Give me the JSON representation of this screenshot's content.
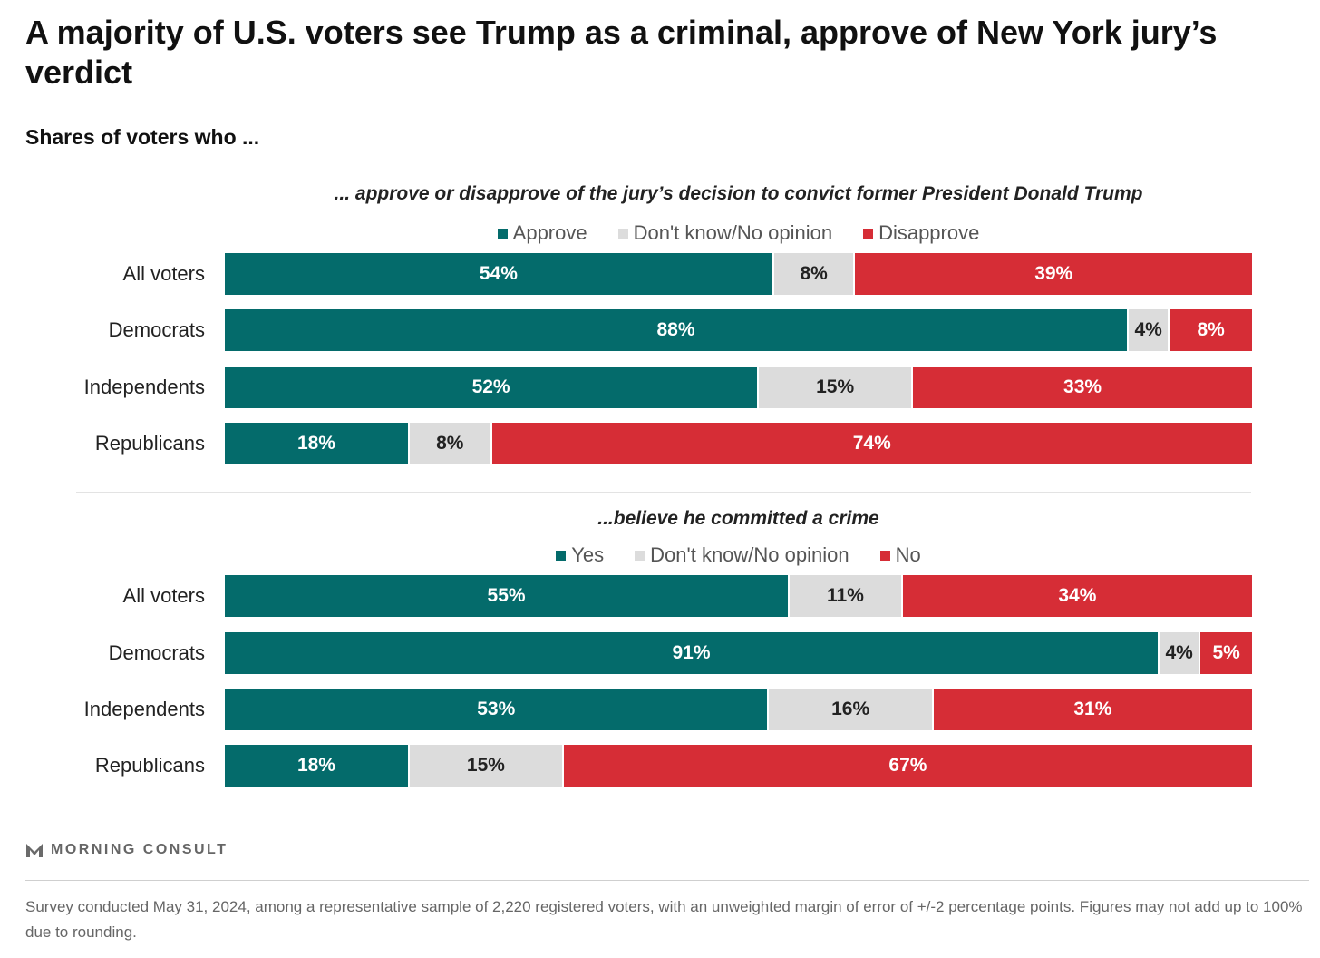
{
  "title": "A majority of U.S. voters see Trump as a criminal, approve of New York jury’s verdict",
  "subtitle": "Shares of voters who ...",
  "brand": "MORNING CONSULT",
  "footnote": "Survey conducted May 31, 2024, among a representative sample of 2,220 registered voters, with an unweighted margin of error of +/-2 percentage points. Figures may not add up to 100% due to rounding.",
  "colors": {
    "positive": "#046b6b",
    "neutral": "#dcdcdc",
    "negative": "#d62d36"
  },
  "chart_data": [
    {
      "type": "bar",
      "orientation": "horizontal",
      "stacked": true,
      "title": "... approve or disapprove of the jury’s decision to convict former President Donald Trump",
      "categories": [
        "All voters",
        "Democrats",
        "Independents",
        "Republicans"
      ],
      "series": [
        {
          "name": "Approve",
          "color": "#046b6b",
          "values": [
            54,
            88,
            52,
            18
          ]
        },
        {
          "name": "Don't know/No opinion",
          "color": "#dcdcdc",
          "values": [
            8,
            4,
            15,
            8
          ]
        },
        {
          "name": "Disapprove",
          "color": "#d62d36",
          "values": [
            39,
            8,
            33,
            74
          ]
        }
      ],
      "value_suffix": "%",
      "legend": "top-center",
      "grid": false
    },
    {
      "type": "bar",
      "orientation": "horizontal",
      "stacked": true,
      "title": "...believe he committed a crime",
      "categories": [
        "All voters",
        "Democrats",
        "Independents",
        "Republicans"
      ],
      "series": [
        {
          "name": "Yes",
          "color": "#046b6b",
          "values": [
            55,
            91,
            53,
            18
          ]
        },
        {
          "name": "Don't know/No opinion",
          "color": "#dcdcdc",
          "values": [
            11,
            4,
            16,
            15
          ]
        },
        {
          "name": "No",
          "color": "#d62d36",
          "values": [
            34,
            5,
            31,
            67
          ]
        }
      ],
      "value_suffix": "%",
      "legend": "top-center",
      "grid": false
    }
  ]
}
